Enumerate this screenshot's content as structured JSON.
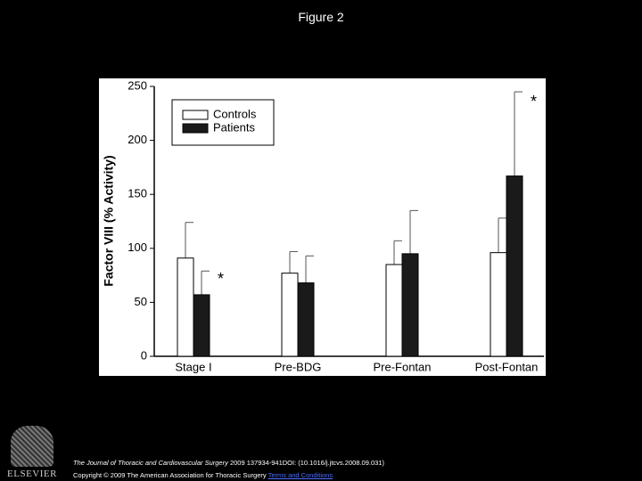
{
  "slide_title": "Figure 2",
  "chart_data": {
    "type": "bar",
    "y_label": "Factor VIII (% Activity)",
    "categories": [
      "Stage I",
      "Pre-BDG",
      "Pre-Fontan",
      "Post-Fontan"
    ],
    "series": [
      {
        "name": "Controls",
        "color": "#ffffff",
        "values": [
          91,
          77,
          85,
          96
        ],
        "errors": [
          33,
          20,
          22,
          32
        ]
      },
      {
        "name": "Patients",
        "color": "#1a1a1a",
        "values": [
          57,
          68,
          95,
          167
        ],
        "errors": [
          22,
          25,
          40,
          78
        ]
      }
    ],
    "annotations": [
      "*",
      "*"
    ],
    "ylim": [
      0,
      250
    ],
    "yticks": [
      0,
      50,
      100,
      150,
      200,
      250
    ],
    "grid": false,
    "legend": "upper left"
  },
  "footer": {
    "journal": "The Journal of Thoracic and Cardiovascular Surgery",
    "citation": "2009 137934-941DOI: (10.1016/j.jtcvs.2008.09.031)",
    "copyright": "Copyright © 2009 The American Association for Thoracic Surgery",
    "link": "Terms and Conditions"
  },
  "logo": "ELSEVIER"
}
